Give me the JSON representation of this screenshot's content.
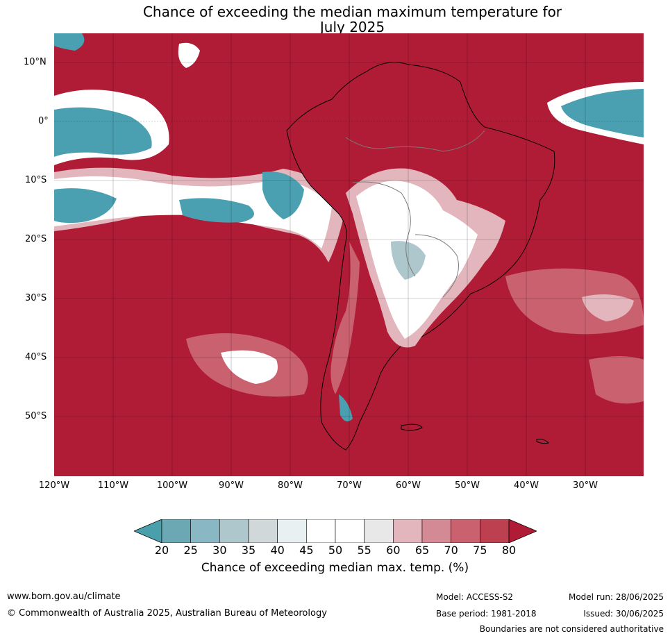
{
  "title": {
    "line1": "Chance of exceeding the median maximum temperature for",
    "line2": "July 2025"
  },
  "map": {
    "lat_labels": [
      "10°N",
      "0°",
      "10°S",
      "20°S",
      "30°S",
      "40°S",
      "50°S"
    ],
    "lon_labels": [
      "120°W",
      "110°W",
      "100°W",
      "90°W",
      "80°W",
      "70°W",
      "60°W",
      "50°W",
      "40°W",
      "30°W"
    ],
    "colors": {
      "hot": "#b01c36",
      "warm": "#c8566a",
      "neutral": "#ffffff",
      "cool": "#4aa0b0",
      "land_outline": "#000000",
      "border": "#7a7a7a"
    }
  },
  "colorbar": {
    "ticks": [
      "20",
      "25",
      "30",
      "35",
      "40",
      "45",
      "50",
      "55",
      "60",
      "65",
      "70",
      "75",
      "80"
    ],
    "colors": [
      "#4a9fad",
      "#6ca8b4",
      "#8ab7c4",
      "#adc7cc",
      "#d0d8da",
      "#e9f0f2",
      "#ffffff",
      "#ffffff",
      "#e8e8e8",
      "#e2b6bc",
      "#d48a94",
      "#c9616f",
      "#bd4051",
      "#b01c36"
    ],
    "label": "Chance of exceeding median max. temp. (%)"
  },
  "footer": {
    "website": "www.bom.gov.au/climate",
    "copyright": "© Commonwealth of Australia 2025, Australian Bureau of Meteorology",
    "model": "Model: ACCESS-S2",
    "base_period": "Base period: 1981-2018",
    "model_run": "Model run: 28/06/2025",
    "issued": "Issued: 30/06/2025",
    "disclaimer": "Boundaries are not considered authoritative"
  }
}
